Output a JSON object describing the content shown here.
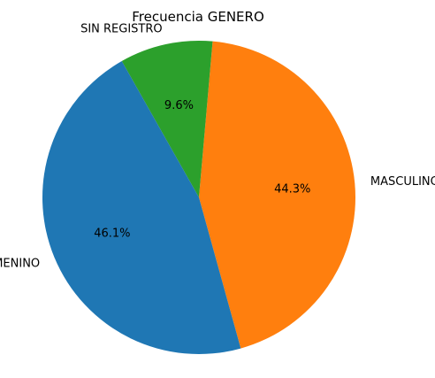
{
  "chart_data": {
    "type": "pie",
    "title": "Frecuencia GENERO",
    "categories": [
      "MASCULINO",
      "SIN REGISTRO",
      "FEMENINO"
    ],
    "values": [
      44.3,
      9.6,
      46.1
    ],
    "labels": [
      "44.3%",
      "9.6%",
      "46.1%"
    ],
    "colors": [
      "#ff7f0e",
      "#2ca02c",
      "#1f77b4"
    ],
    "legend": "none"
  }
}
